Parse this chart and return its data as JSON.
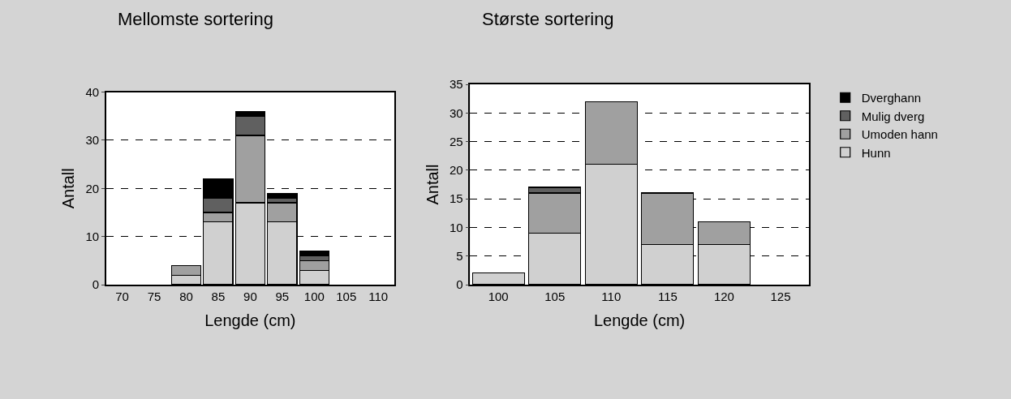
{
  "chart_data": [
    {
      "type": "bar",
      "title": "Mellomste sortering",
      "xlabel": "Lengde (cm)",
      "ylabel": "Antall",
      "stacked": true,
      "grid": "y",
      "ylim": [
        0,
        40
      ],
      "yticks": [
        0,
        10,
        20,
        30,
        40
      ],
      "categories": [
        "70",
        "75",
        "80",
        "85",
        "90",
        "95",
        "100",
        "105",
        "110"
      ],
      "series": [
        {
          "color": "#d0d0d0",
          "values": [
            null,
            null,
            2,
            13,
            17,
            13,
            3,
            null,
            null
          ]
        },
        {
          "color": "#a0a0a0",
          "values": [
            null,
            null,
            2,
            2,
            14,
            4,
            2,
            null,
            null
          ]
        },
        {
          "color": "#606060",
          "values": [
            null,
            null,
            null,
            3,
            4,
            1,
            1,
            null,
            null
          ]
        },
        {
          "color": "#000000",
          "values": [
            null,
            null,
            null,
            4,
            1,
            1,
            1,
            null,
            null
          ]
        }
      ]
    },
    {
      "type": "bar",
      "title": "Største sortering",
      "xlabel": "Lengde (cm)",
      "ylabel": "Antall",
      "stacked": true,
      "grid": "y",
      "legend": "right",
      "ylim": [
        0,
        35
      ],
      "yticks": [
        0,
        5,
        10,
        15,
        20,
        25,
        30,
        35
      ],
      "categories": [
        "100",
        "105",
        "110",
        "115",
        "120",
        "125"
      ],
      "series": [
        {
          "name": "Hunn",
          "color": "#d0d0d0",
          "values": [
            2,
            9,
            21,
            7,
            7,
            null
          ]
        },
        {
          "name": "Umoden hann",
          "color": "#a0a0a0",
          "values": [
            null,
            7,
            11,
            9,
            4,
            null
          ]
        },
        {
          "name": "Mulig dverg",
          "color": "#606060",
          "values": [
            null,
            1,
            null,
            null,
            null,
            null
          ]
        },
        {
          "name": "Dverghann",
          "color": "#000000",
          "values": [
            null,
            null,
            null,
            null,
            null,
            null
          ]
        }
      ]
    }
  ]
}
